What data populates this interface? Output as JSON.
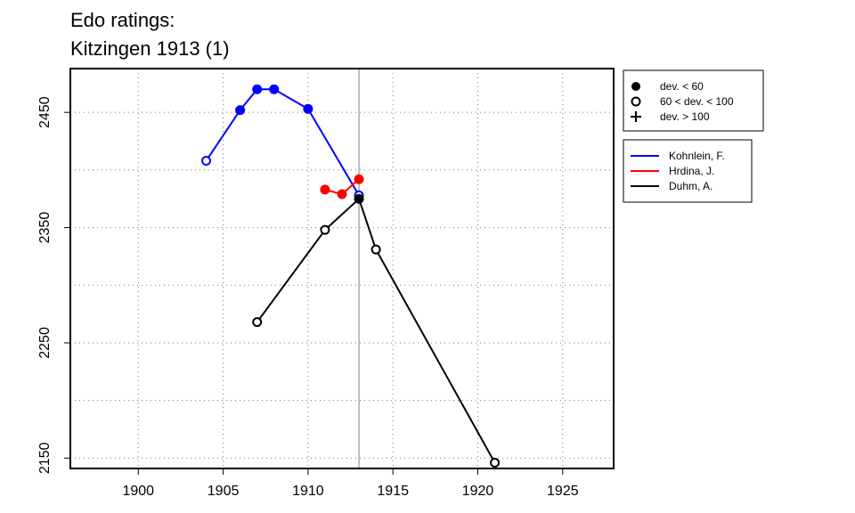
{
  "chart_data": {
    "type": "line",
    "title": "Edo ratings:",
    "subtitle": "Kitzingen 1913 (1)",
    "xlabel": "",
    "ylabel": "",
    "xlim": [
      1896,
      1928
    ],
    "ylim": [
      2141,
      2488
    ],
    "x_ticks": [
      1900,
      1905,
      1910,
      1915,
      1920,
      1925
    ],
    "y_ticks": [
      2150,
      2250,
      2350,
      2450
    ],
    "y_grid": [
      2150,
      2200,
      2250,
      2300,
      2350,
      2400,
      2450
    ],
    "grid": true,
    "reference_line_x": 1913,
    "series": [
      {
        "name": "Kohnlein, F.",
        "color": "#0000ff",
        "points": [
          {
            "x": 1904,
            "y": 2408,
            "marker": "open"
          },
          {
            "x": 1906,
            "y": 2452,
            "marker": "filled"
          },
          {
            "x": 1907,
            "y": 2470,
            "marker": "filled"
          },
          {
            "x": 1908,
            "y": 2470,
            "marker": "filled"
          },
          {
            "x": 1910,
            "y": 2453,
            "marker": "filled"
          },
          {
            "x": 1913,
            "y": 2378,
            "marker": "open"
          }
        ]
      },
      {
        "name": "Hrdina, J.",
        "color": "#ff0000",
        "points": [
          {
            "x": 1911,
            "y": 2383,
            "marker": "filled"
          },
          {
            "x": 1912,
            "y": 2379,
            "marker": "filled"
          },
          {
            "x": 1913,
            "y": 2392,
            "marker": "filled"
          }
        ]
      },
      {
        "name": "Duhm, A.",
        "color": "#000000",
        "points": [
          {
            "x": 1907,
            "y": 2268,
            "marker": "open"
          },
          {
            "x": 1911,
            "y": 2348,
            "marker": "open"
          },
          {
            "x": 1913,
            "y": 2375,
            "marker": "filled"
          },
          {
            "x": 1914,
            "y": 2331,
            "marker": "open"
          },
          {
            "x": 1921,
            "y": 2146,
            "marker": "open"
          }
        ]
      }
    ],
    "marker_legend": [
      {
        "label": "dev. < 60",
        "symbol": "filled"
      },
      {
        "label": "60 < dev. < 100",
        "symbol": "open"
      },
      {
        "label": "dev. > 100",
        "symbol": "plus"
      }
    ],
    "legend_position": "right"
  }
}
